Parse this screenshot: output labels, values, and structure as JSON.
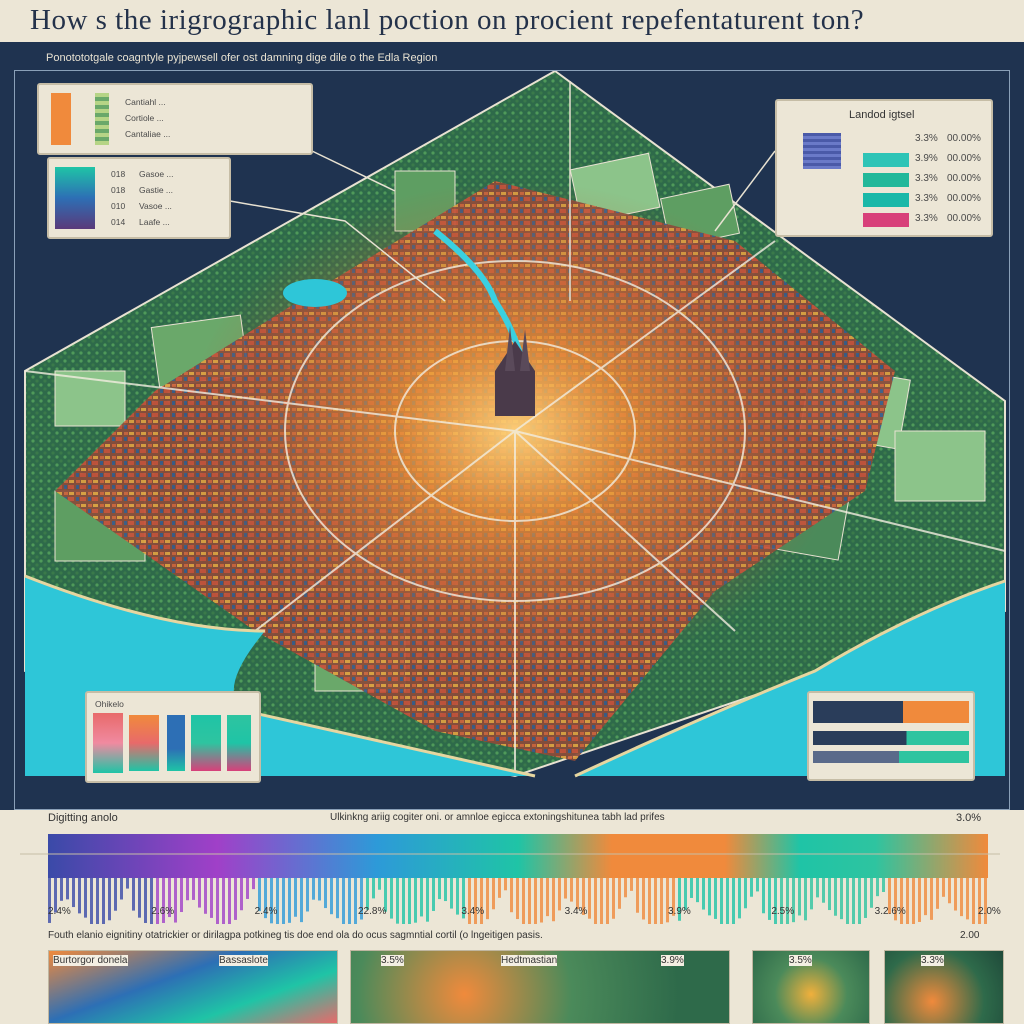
{
  "header": {
    "title": "How s the irigrographic lanl poction on procient repefentaturent ton?",
    "subtitle": "Ponotototgale coagntyle pyjpewsell ofer ost damning dige dile o the Edla Region"
  },
  "legend_top_left": {
    "rows": [
      "Cantiahl ... ",
      "Cortiole ...",
      "Cantaliae ..."
    ]
  },
  "legend_mid_left": {
    "rows": [
      {
        "value": "018",
        "label": "Gasoe ..."
      },
      {
        "value": "018",
        "label": "Gastie ..."
      },
      {
        "value": "010",
        "label": "Vasoe ..."
      },
      {
        "value": "014",
        "label": "Laafe ..."
      }
    ]
  },
  "legend_right": {
    "title": "Landod igtsel",
    "rows": [
      {
        "label": "3.3%",
        "value": "00.00%"
      },
      {
        "label": "3.9%",
        "value": "00.00%"
      },
      {
        "label": "3.3%",
        "value": "00.00%"
      },
      {
        "label": "3.3%",
        "value": "00.00%"
      },
      {
        "label": "3.3%",
        "value": "00.00%"
      }
    ],
    "colors": [
      "#4a5aa8",
      "#2ec4b6",
      "#22b89a",
      "#1ab8a8",
      "#d8407a"
    ]
  },
  "legend_bottom_left": {
    "title": "Ohikelo",
    "colors": [
      "#e86a6a",
      "#f08a3c",
      "#2d6fb5",
      "#1fc4a6",
      "#2ec4a0"
    ]
  },
  "colors": {
    "frame_bg": "#1f3350",
    "water": "#2ec6d8",
    "field_light": "#8cc48a",
    "field_dark": "#4b8a5a",
    "urban": "#b85a3a",
    "road_glow": "#ffb43a"
  },
  "bottom": {
    "scale_label": "Digitting anolo",
    "scale_caption": "Ulkinkng ariig cogiter oni. or amnloe egicca extoningshitunea tabh lad prifes",
    "scale_max": "3.0%",
    "ticks": [
      "2.4%",
      "2.6%",
      "2.4%",
      "22.8%",
      "3.4%",
      "3.4%",
      "3.9%",
      "2.5%",
      "3.2.6%",
      "2.0%"
    ],
    "note": "Fouth elanio eignitiny otatrickier or dirilagpa potkineg tis doe end ola do ocus sagmntial cortil (o lngeitigen pasis.",
    "note_value": "2.00",
    "panels": [
      {
        "label": "Burtorgor donela",
        "value": ""
      },
      {
        "label": "Bassaslote",
        "value": "3.5%"
      },
      {
        "label": "Hedtmastian",
        "value": "3.9%"
      },
      {
        "label": "",
        "value": "3.5%"
      },
      {
        "label": "",
        "value": "3.3%"
      }
    ]
  }
}
